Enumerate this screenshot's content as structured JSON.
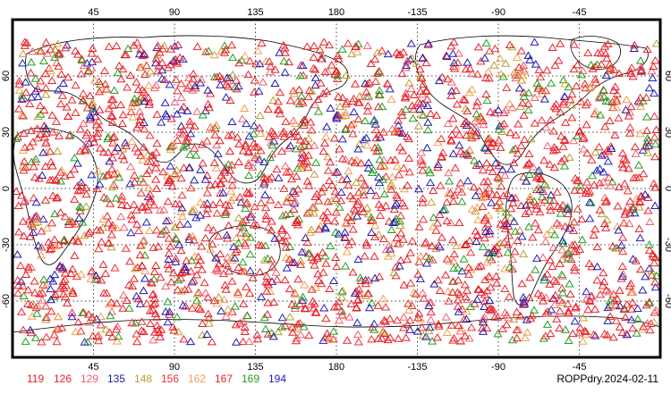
{
  "map": {
    "title": "ROPPdry.2024-02-11",
    "lon_ticks": [
      "45",
      "90",
      "135",
      "180",
      "-135",
      "-90",
      "-45"
    ],
    "lon_tick_values": [
      45,
      90,
      135,
      180,
      225,
      270,
      315
    ],
    "lat_ticks": [
      "60",
      "30",
      "0",
      "-30",
      "-60"
    ],
    "lat_tick_values": [
      60,
      30,
      0,
      -30,
      -60
    ],
    "lon_range": [
      0,
      360
    ],
    "lat_range": [
      -90,
      90
    ],
    "grid": true,
    "marker_shape": "triangle-outline",
    "legend": [
      {
        "label": "119",
        "color": "#e8202a"
      },
      {
        "label": "126",
        "color": "#e8202a"
      },
      {
        "label": "129",
        "color": "#f06070"
      },
      {
        "label": "135",
        "color": "#1a1aa8"
      },
      {
        "label": "148",
        "color": "#b8a030"
      },
      {
        "label": "156",
        "color": "#e83030"
      },
      {
        "label": "162",
        "color": "#f0a050"
      },
      {
        "label": "167",
        "color": "#e82020"
      },
      {
        "label": "169",
        "color": "#20a020"
      },
      {
        "label": "194",
        "color": "#2020c0"
      }
    ]
  }
}
